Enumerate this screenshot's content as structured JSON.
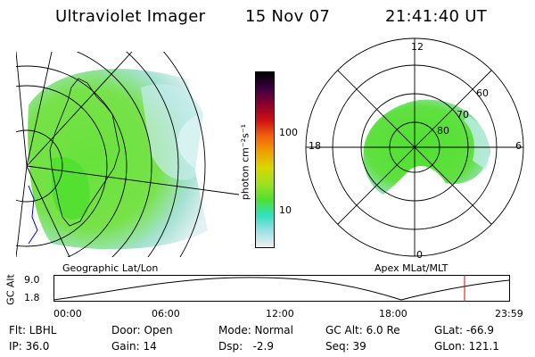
{
  "header": {
    "instrument": "Ultraviolet Imager",
    "date": "15 Nov 07",
    "time": "21:41:40 UT"
  },
  "left_map": {
    "label": "Geographic Lat/Lon"
  },
  "right_map": {
    "label": "Apex  MLat/MLT",
    "mlt_labels": [
      "12",
      "18",
      "6",
      "0"
    ],
    "lat_labels": [
      "60",
      "70",
      "80"
    ]
  },
  "colorbar": {
    "unit_label": "photon cm⁻²s⁻¹",
    "ticks": [
      "100",
      "10"
    ],
    "colors": [
      "#000000",
      "#3a0040",
      "#8a0030",
      "#cc1010",
      "#f06010",
      "#f0a000",
      "#d8d800",
      "#a0e020",
      "#50e030",
      "#30e0c0",
      "#a0e0e8",
      "#f0f0f0"
    ]
  },
  "altitude_plot": {
    "ylabel": "GC Alt",
    "yticks": [
      "9.0",
      "1.8"
    ],
    "xticks": [
      "00:00",
      "06:00",
      "12:00",
      "18:00",
      "23:59"
    ],
    "current_marker_color": "#e00000"
  },
  "info": {
    "row1": {
      "flt": "Flt: LBHL",
      "door": "Door: Open",
      "mode": "Mode: Normal",
      "gcalt": "GC Alt: 6.0 Re",
      "glat": "GLat: -66.9"
    },
    "row2": {
      "ip": "IP: 36.0",
      "gain": "Gain: 14",
      "dsp": "Dsp:   -2.9",
      "seq": "Seq: 39",
      "glon": "GLon: 121.1"
    }
  }
}
